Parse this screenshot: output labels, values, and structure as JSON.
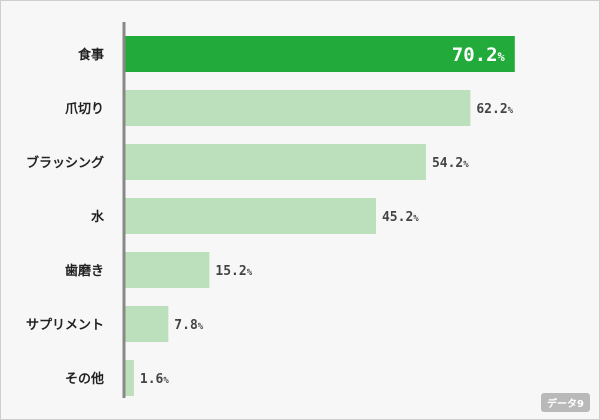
{
  "chart_data": {
    "type": "bar",
    "orientation": "horizontal",
    "categories": [
      "食事",
      "爪切り",
      "ブラッシング",
      "水",
      "歯磨き",
      "サプリメント",
      "その他"
    ],
    "values": [
      70.2,
      62.2,
      54.2,
      45.2,
      15.2,
      7.8,
      1.6
    ],
    "value_unit": "%",
    "xlim": [
      0,
      76
    ],
    "grid": false,
    "legend": "none",
    "highlight_index": 0,
    "colors": {
      "highlight": "#22ab3a",
      "bar": "#bcdfbc",
      "axis": "#888888"
    }
  },
  "watermark": "データ9"
}
